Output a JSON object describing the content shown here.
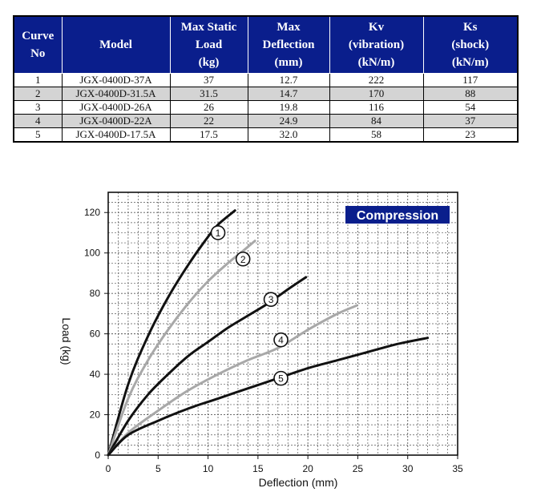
{
  "table": {
    "headers": [
      [
        "Curve",
        "No"
      ],
      [
        "Model"
      ],
      [
        "Max Static",
        "Load",
        "(kg)"
      ],
      [
        "Max",
        "Deflection",
        "(mm)"
      ],
      [
        "Kv",
        "(vibration)",
        "(kN/m)"
      ],
      [
        "Ks",
        "(shock)",
        "(kN/m)"
      ]
    ],
    "rows": [
      [
        "1",
        "JGX-0400D-37A",
        "37",
        "12.7",
        "222",
        "117"
      ],
      [
        "2",
        "JGX-0400D-31.5A",
        "31.5",
        "14.7",
        "170",
        "88"
      ],
      [
        "3",
        "JGX-0400D-26A",
        "26",
        "19.8",
        "116",
        "54"
      ],
      [
        "4",
        "JGX-0400D-22A",
        "22",
        "24.9",
        "84",
        "37"
      ],
      [
        "5",
        "JGX-0400D-17.5A",
        "17.5",
        "32.0",
        "58",
        "23"
      ]
    ],
    "header_color": "#0a1e8c",
    "shade_color": "#d4d4d4"
  },
  "chart_data": {
    "type": "line",
    "title": "Compression",
    "xlabel": "Deflection (mm)",
    "ylabel": "Load (kg)",
    "xlim": [
      0,
      35
    ],
    "ylim": [
      0,
      130
    ],
    "xticks": [
      "0",
      "5",
      "10",
      "15",
      "20",
      "25",
      "30",
      "35"
    ],
    "yticks": [
      "0",
      "20",
      "40",
      "60",
      "80",
      "100",
      "120"
    ],
    "grid": true,
    "legend": "none",
    "colors": {
      "dark": "#111111",
      "light": "#a8a8a8",
      "title_bg": "#0a1e8c",
      "title_text": "#ffffff",
      "grid": "#555555"
    },
    "series": [
      {
        "label": "1",
        "color": "dark",
        "x": [
          0,
          2,
          4,
          6,
          8,
          10,
          11,
          12.7
        ],
        "y": [
          0,
          35,
          59,
          78,
          94,
          108,
          114,
          121
        ]
      },
      {
        "label": "2",
        "color": "light",
        "x": [
          0,
          2,
          4,
          6,
          8,
          10,
          12,
          13.5,
          14.7
        ],
        "y": [
          0,
          28,
          47,
          62,
          75,
          86,
          95,
          101,
          106
        ]
      },
      {
        "label": "3",
        "color": "dark",
        "x": [
          0,
          2,
          4,
          6,
          8,
          10,
          12,
          14,
          16,
          18,
          19.8
        ],
        "y": [
          0,
          17,
          30,
          40,
          49,
          56,
          63,
          69,
          75,
          82,
          88
        ]
      },
      {
        "label": "4",
        "color": "light",
        "x": [
          0,
          2,
          5,
          8,
          11,
          14,
          17,
          20,
          23,
          24.9
        ],
        "y": [
          0,
          11,
          22,
          32,
          40,
          47,
          53,
          62,
          70,
          74
        ]
      },
      {
        "label": "5",
        "color": "dark",
        "x": [
          0,
          2,
          5,
          8,
          11,
          14,
          17,
          20,
          23,
          26,
          29,
          32
        ],
        "y": [
          0,
          10,
          17,
          23,
          28,
          33,
          38,
          43,
          47,
          51,
          55,
          58
        ]
      }
    ],
    "curve_label_positions": [
      {
        "label": "1",
        "x": 11.0,
        "y": 110
      },
      {
        "label": "2",
        "x": 13.5,
        "y": 97
      },
      {
        "label": "3",
        "x": 16.3,
        "y": 77
      },
      {
        "label": "4",
        "x": 17.3,
        "y": 57
      },
      {
        "label": "5",
        "x": 17.3,
        "y": 38
      }
    ]
  }
}
